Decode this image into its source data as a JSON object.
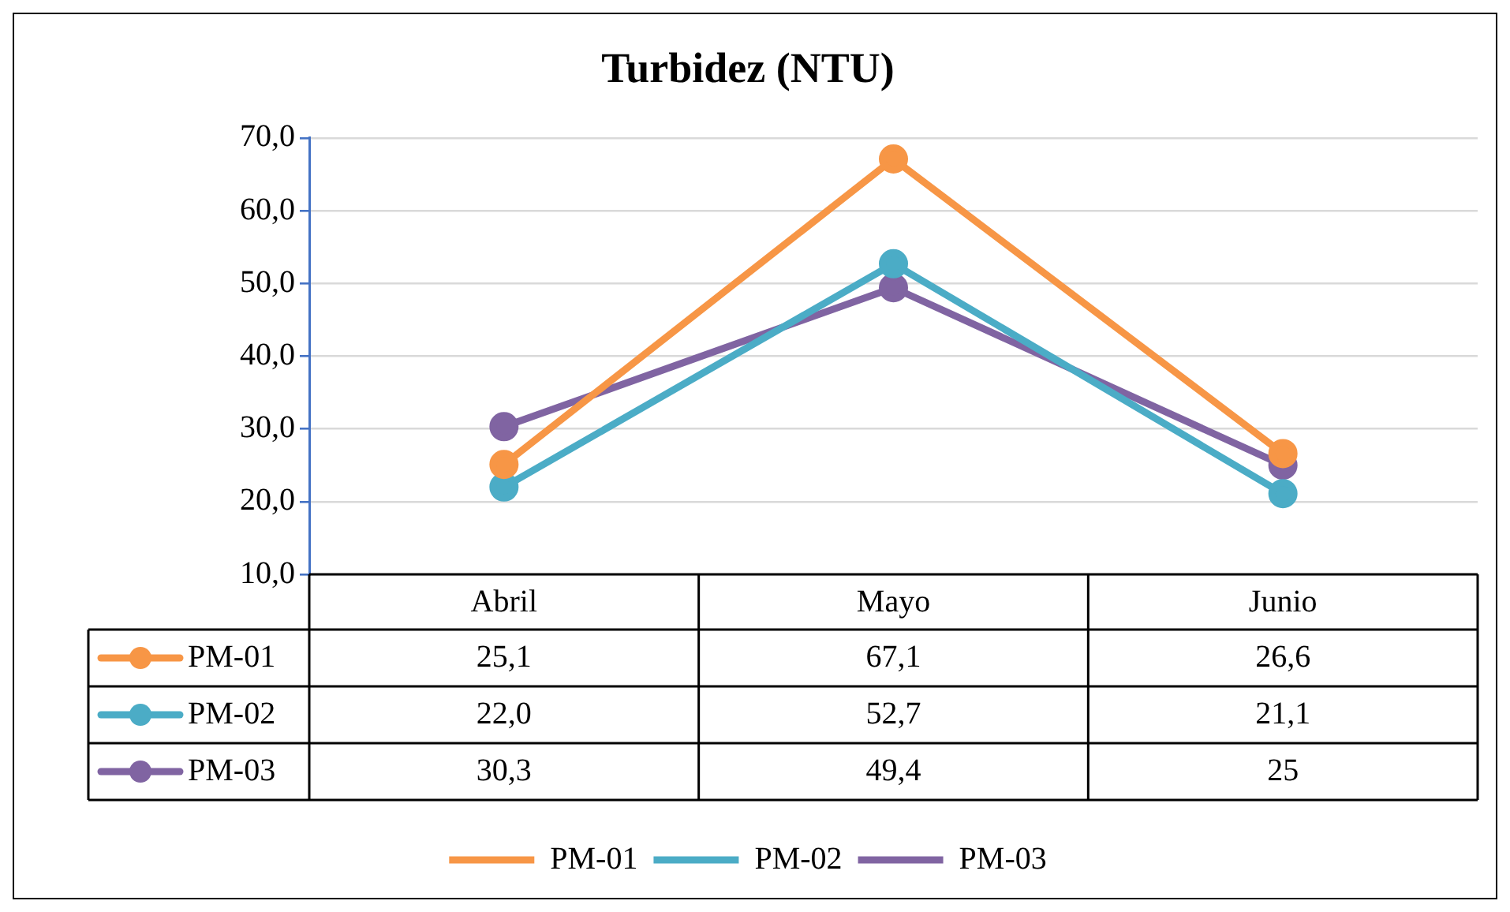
{
  "chart_data": {
    "type": "line",
    "title": "Turbidez (NTU)",
    "categories": [
      "Abril",
      "Mayo",
      "Junio"
    ],
    "series": [
      {
        "name": "PM-01",
        "color": "#f79646",
        "values": [
          25.1,
          67.1,
          26.6
        ],
        "value_labels": [
          "25,1",
          "67,1",
          "26,6"
        ]
      },
      {
        "name": "PM-02",
        "color": "#4bacc6",
        "values": [
          22.0,
          52.7,
          21.1
        ],
        "value_labels": [
          "22,0",
          "52,7",
          "21,1"
        ]
      },
      {
        "name": "PM-03",
        "color": "#8064a2",
        "values": [
          30.3,
          49.4,
          25
        ],
        "value_labels": [
          "30,3",
          "49,4",
          "25"
        ]
      }
    ],
    "ylim": [
      10,
      70
    ],
    "yticks": [
      {
        "value": 10,
        "label": "10,0"
      },
      {
        "value": 20,
        "label": "20,0"
      },
      {
        "value": 30,
        "label": "30,0"
      },
      {
        "value": 40,
        "label": "40,0"
      },
      {
        "value": 50,
        "label": "50,0"
      },
      {
        "value": 60,
        "label": "60,0"
      },
      {
        "value": 70,
        "label": "70,0"
      }
    ],
    "grid": "y",
    "legend": "bottom",
    "marker": "circle",
    "line_style": "solid"
  }
}
